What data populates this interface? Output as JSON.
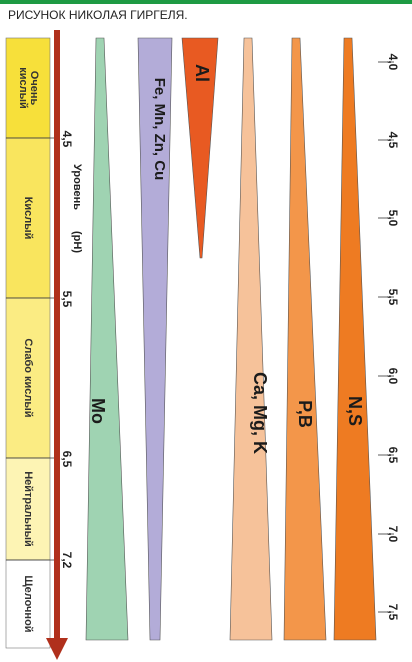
{
  "caption": "РИСУНОК НИКОЛАЯ ГИРГЕЛЯ.",
  "zones": [
    {
      "label": "Очень кислый",
      "color": "#f7e03a"
    },
    {
      "label": "Кислый",
      "color": "#f9e55e"
    },
    {
      "label": "Слабо кислый",
      "color": "#fbec83"
    },
    {
      "label": "Нейтральный",
      "color": "#fdf4b4"
    },
    {
      "label": "Щелочной",
      "color": "#ffffff"
    }
  ],
  "axis": {
    "label_level": "Уровень",
    "label_ph": "(pH)"
  },
  "left_ticks": [
    "4,5",
    "5,5",
    "6,5",
    "7,2"
  ],
  "right_ticks": [
    "4,0",
    "4,5",
    "5,0",
    "5,5",
    "6,0",
    "6,5",
    "7,0",
    "7,5"
  ],
  "bands": [
    {
      "label": "Mo",
      "color": "#9fd3b2"
    },
    {
      "label": "Fe, Mn, Zn, Cu",
      "color": "#b3acd8"
    },
    {
      "label": "Al",
      "color": "#e85a22"
    },
    {
      "label": "Ca, Mg, K",
      "color": "#f6c29a"
    },
    {
      "label": "P,B",
      "color": "#f3964a"
    },
    {
      "label": "N,S",
      "color": "#ee7b22"
    }
  ],
  "colors": {
    "arrow": "#b0301c",
    "band_outline": "#555555",
    "top_bar": "#1e9a43"
  }
}
